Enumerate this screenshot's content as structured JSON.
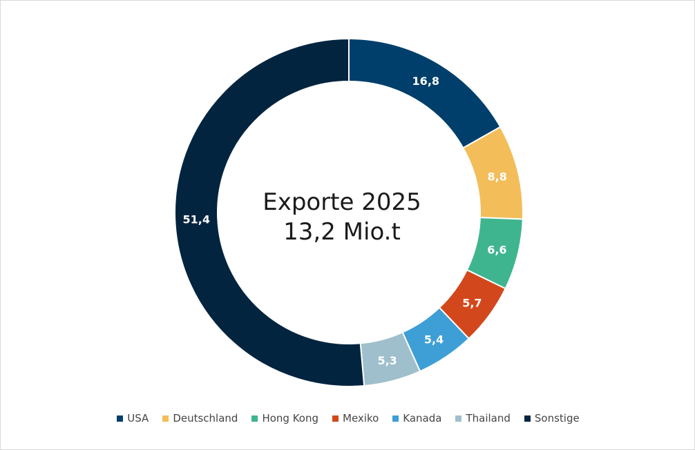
{
  "chart_data": {
    "type": "pie",
    "donut": true,
    "center_title": "Exporte 2025",
    "center_subtitle": "13,2 Mio.t",
    "legend_position": "bottom",
    "categories": [
      "USA",
      "Deutschland",
      "Hong Kong",
      "Mexiko",
      "Kanada",
      "Thailand",
      "Sonstige"
    ],
    "values": [
      16.8,
      8.8,
      6.6,
      5.7,
      5.4,
      5.3,
      51.4
    ],
    "value_labels": [
      "16,8",
      "8,8",
      "6,6",
      "5,7",
      "5,4",
      "5,3",
      "51,4"
    ],
    "colors": [
      "#003f6b",
      "#f3bd5a",
      "#3fb58f",
      "#d2481c",
      "#3e9fd6",
      "#9fbfcc",
      "#03243f"
    ]
  }
}
